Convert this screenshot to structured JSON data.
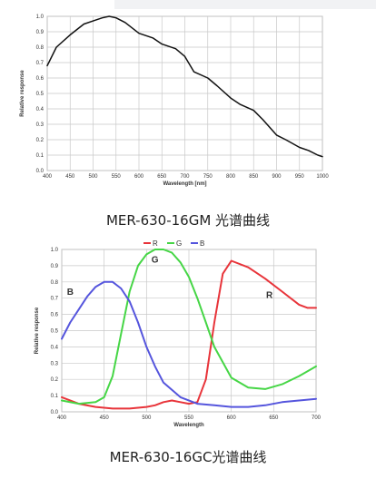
{
  "captions": {
    "mono": "MER-630-16GM 光谱曲线",
    "color": "MER-630-16GC光谱曲线"
  },
  "chart_data": [
    {
      "type": "line",
      "xlabel": "Wavelength [nm]",
      "ylabel": "Relative response",
      "xlim": [
        400,
        1000
      ],
      "ylim": [
        0,
        1.0
      ],
      "xticks": [
        400,
        450,
        500,
        550,
        600,
        650,
        700,
        750,
        800,
        850,
        900,
        950,
        1000
      ],
      "yticks": [
        0,
        0.1,
        0.2,
        0.3,
        0.4,
        0.5,
        0.6,
        0.7,
        0.8,
        0.9,
        1.0
      ],
      "grid": true,
      "series": [
        {
          "color": "#111111",
          "x": [
            400,
            420,
            450,
            480,
            500,
            520,
            535,
            550,
            570,
            600,
            630,
            650,
            680,
            700,
            720,
            750,
            770,
            800,
            820,
            850,
            870,
            900,
            920,
            950,
            970,
            990,
            1000
          ],
          "y": [
            0.68,
            0.8,
            0.88,
            0.95,
            0.97,
            0.99,
            1.0,
            0.99,
            0.96,
            0.89,
            0.86,
            0.82,
            0.79,
            0.74,
            0.64,
            0.6,
            0.55,
            0.47,
            0.43,
            0.39,
            0.33,
            0.23,
            0.2,
            0.15,
            0.13,
            0.1,
            0.09
          ]
        }
      ]
    },
    {
      "type": "line",
      "xlabel": "Wavelength",
      "ylabel": "Relative response",
      "xlim": [
        400,
        700
      ],
      "ylim": [
        0,
        1.0
      ],
      "xticks": [
        400,
        450,
        500,
        550,
        600,
        650,
        700
      ],
      "yticks": [
        0,
        0.1,
        0.2,
        0.3,
        0.4,
        0.5,
        0.6,
        0.7,
        0.8,
        0.9,
        1.0
      ],
      "grid": true,
      "legend": [
        "R",
        "G",
        "B"
      ],
      "legend_position": "top-center",
      "curve_labels": [
        "B",
        "G",
        "R"
      ],
      "series": [
        {
          "name": "R",
          "color": "#e8343a",
          "x": [
            400,
            420,
            440,
            460,
            480,
            500,
            510,
            520,
            530,
            540,
            550,
            560,
            570,
            580,
            590,
            600,
            620,
            640,
            660,
            680,
            690,
            700
          ],
          "y": [
            0.09,
            0.05,
            0.03,
            0.02,
            0.02,
            0.03,
            0.04,
            0.06,
            0.07,
            0.06,
            0.05,
            0.06,
            0.2,
            0.55,
            0.85,
            0.93,
            0.89,
            0.82,
            0.74,
            0.66,
            0.64,
            0.64
          ]
        },
        {
          "name": "G",
          "color": "#46d646",
          "x": [
            400,
            420,
            440,
            450,
            460,
            470,
            480,
            490,
            500,
            510,
            520,
            530,
            540,
            550,
            560,
            570,
            580,
            600,
            620,
            640,
            660,
            680,
            700
          ],
          "y": [
            0.07,
            0.05,
            0.06,
            0.09,
            0.22,
            0.48,
            0.74,
            0.9,
            0.97,
            1.0,
            1.0,
            0.98,
            0.92,
            0.83,
            0.7,
            0.55,
            0.4,
            0.21,
            0.15,
            0.14,
            0.17,
            0.22,
            0.28
          ]
        },
        {
          "name": "B",
          "color": "#5555dd",
          "x": [
            400,
            410,
            420,
            430,
            440,
            450,
            460,
            470,
            480,
            490,
            500,
            510,
            520,
            540,
            560,
            580,
            600,
            620,
            640,
            660,
            680,
            700
          ],
          "y": [
            0.45,
            0.55,
            0.63,
            0.71,
            0.77,
            0.8,
            0.8,
            0.76,
            0.68,
            0.55,
            0.4,
            0.28,
            0.18,
            0.09,
            0.05,
            0.04,
            0.03,
            0.03,
            0.04,
            0.06,
            0.07,
            0.08
          ]
        }
      ]
    }
  ]
}
